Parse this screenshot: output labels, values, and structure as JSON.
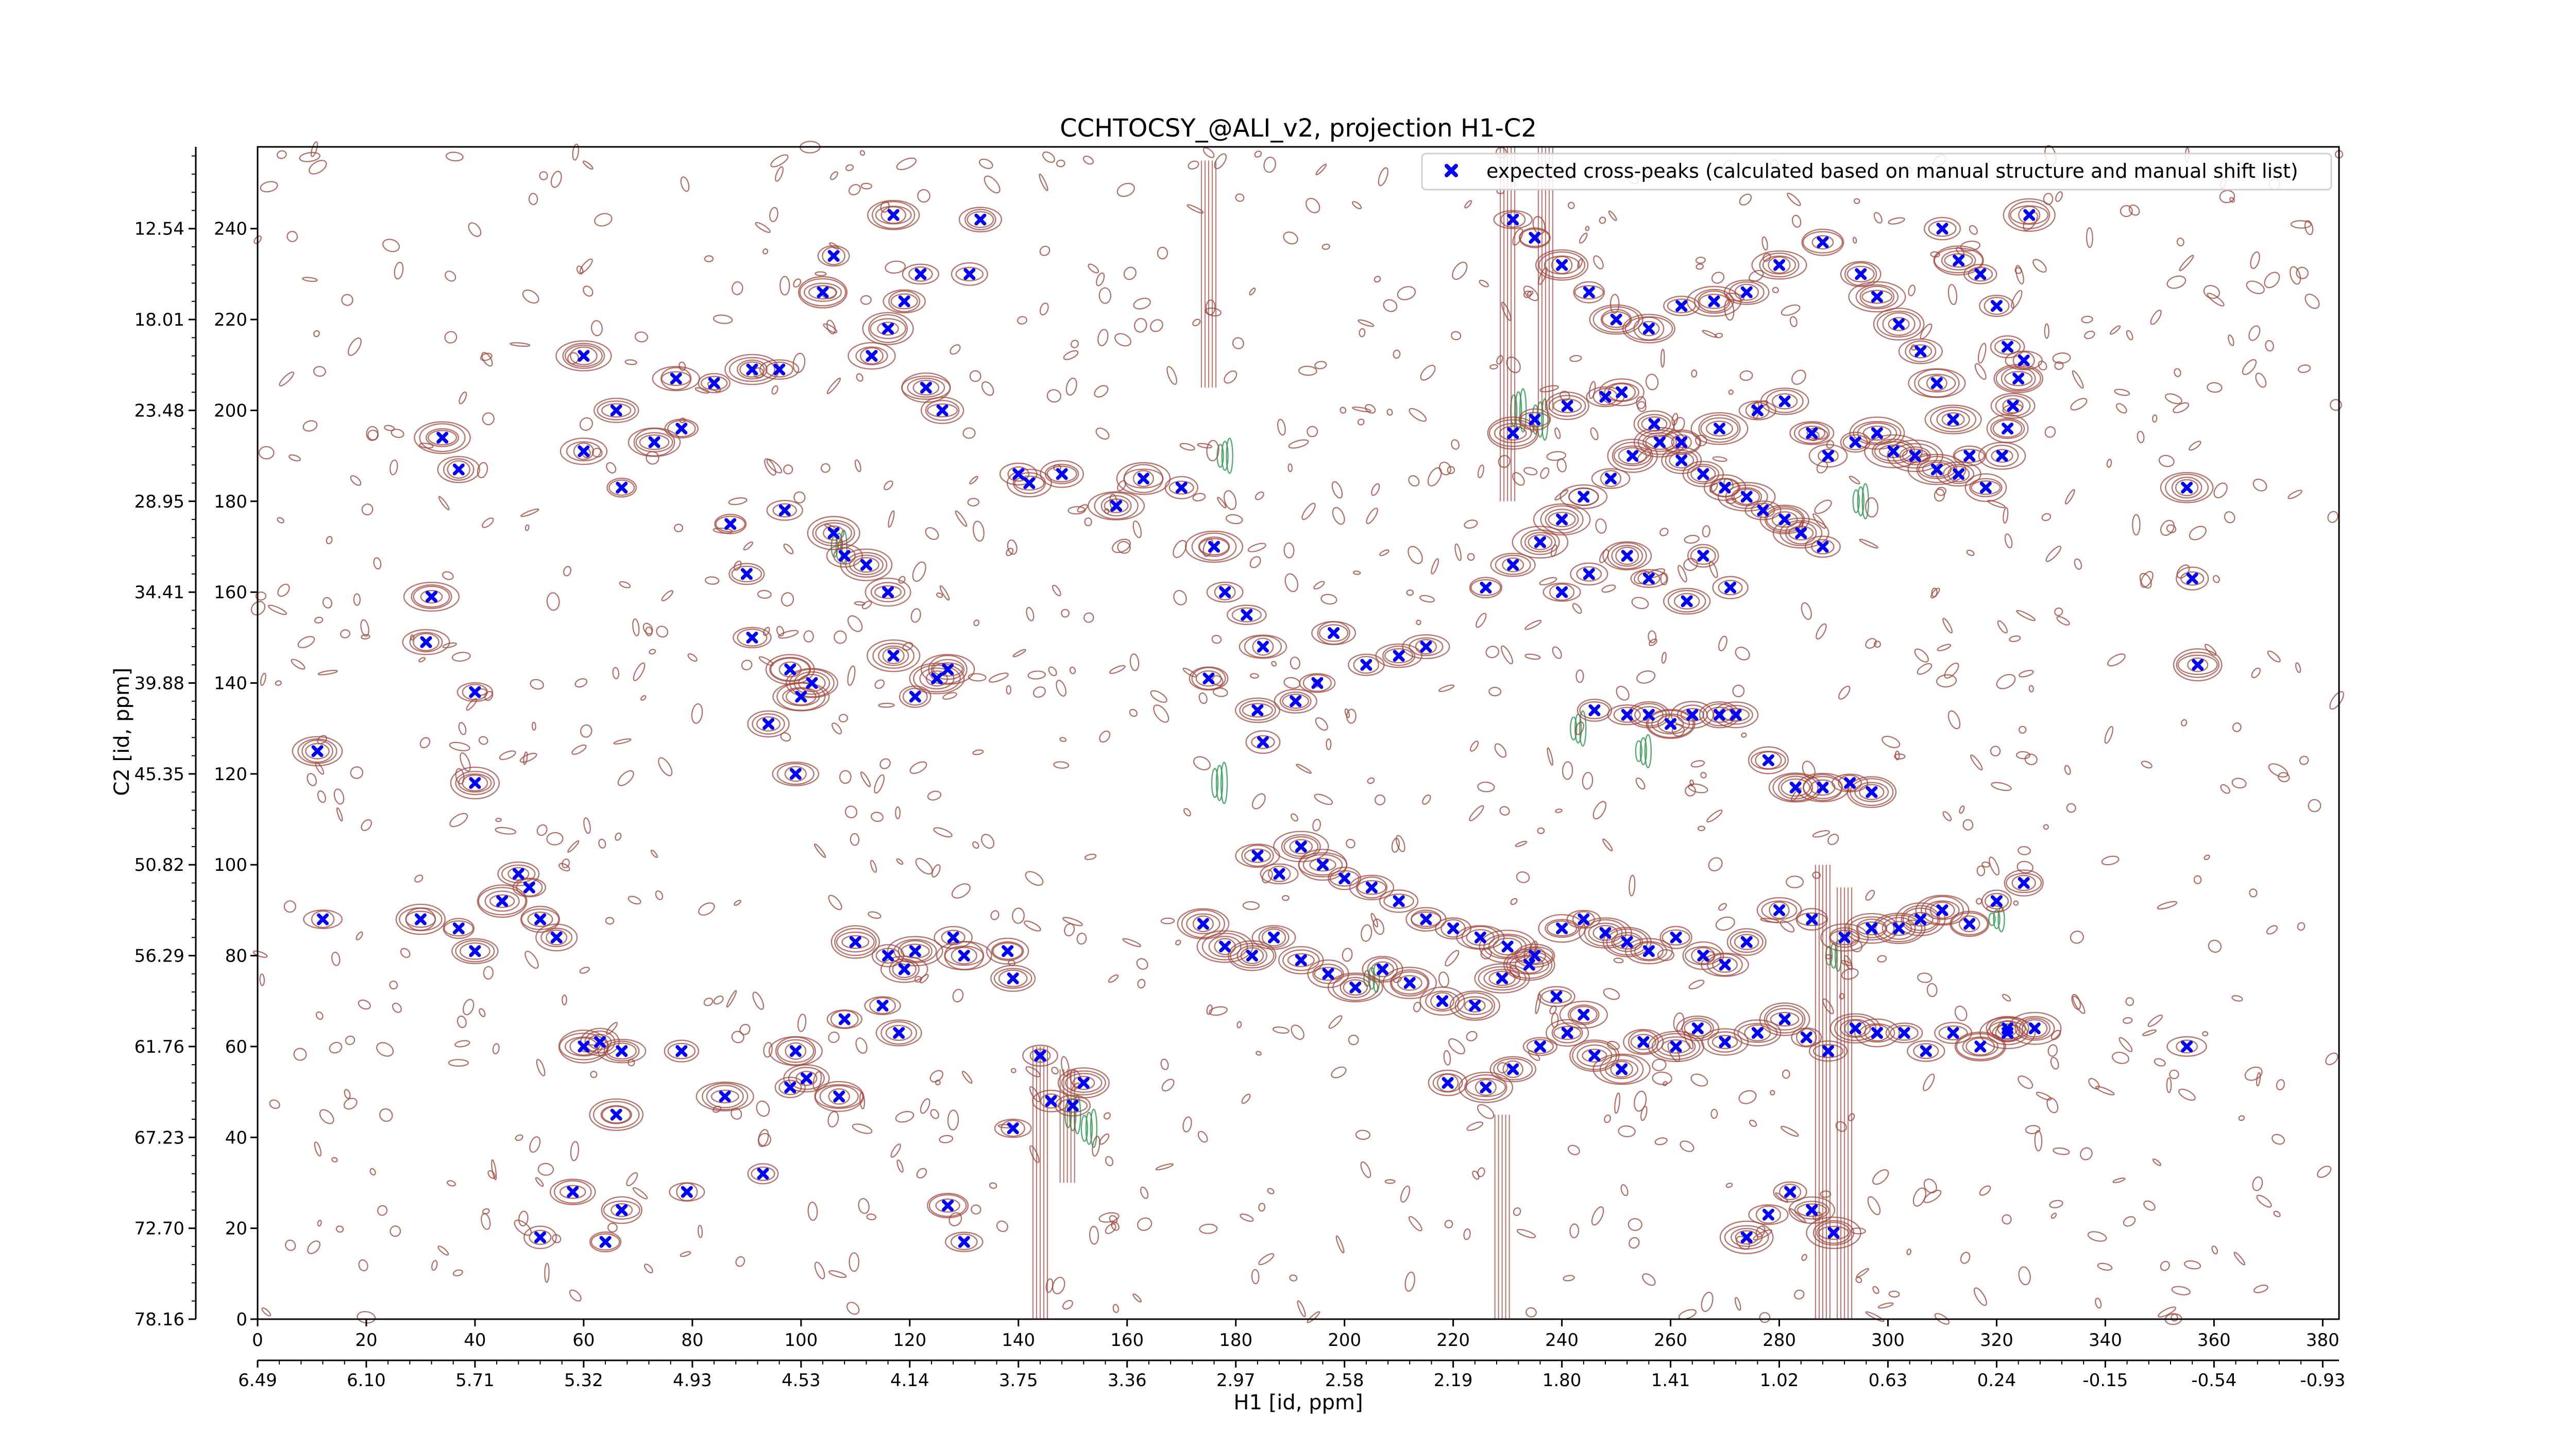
{
  "figure": {
    "title": "CCHTOCSY_@ALI_v2, projection H1-C2"
  },
  "colors": {
    "positive_contours": "#a0463c",
    "negative_contours": "#3a9a5a",
    "expected_peaks": "#0000ff",
    "axes": "#000000",
    "background": "#ffffff"
  },
  "chart_data": {
    "type": "scatter",
    "title": "CCHTOCSY_@ALI_v2, projection H1-C2",
    "xlabel": "H1 [id, ppm]",
    "ylabel": "C2 [id, ppm]",
    "x_index_range": [
      0,
      383
    ],
    "y_index_range": [
      0,
      258
    ],
    "x_index_ticks": [
      "0",
      "20",
      "40",
      "60",
      "80",
      "100",
      "120",
      "140",
      "160",
      "180",
      "200",
      "220",
      "240",
      "260",
      "280",
      "300",
      "320",
      "340",
      "360",
      "380"
    ],
    "x_ppm_ticks": [
      "6.49",
      "6.10",
      "5.71",
      "5.32",
      "4.93",
      "4.53",
      "4.14",
      "3.75",
      "3.36",
      "2.97",
      "2.58",
      "2.19",
      "1.80",
      "1.41",
      "1.02",
      "0.63",
      "0.24",
      "-0.15",
      "-0.54",
      "-0.93"
    ],
    "y_index_ticks": [
      "0",
      "20",
      "40",
      "60",
      "80",
      "100",
      "120",
      "140",
      "160",
      "180",
      "200",
      "220",
      "240"
    ],
    "y_ppm_ticks": [
      "78.16",
      "72.70",
      "67.23",
      "61.76",
      "56.29",
      "50.82",
      "45.35",
      "39.88",
      "34.41",
      "28.95",
      "23.48",
      "18.01",
      "12.54"
    ],
    "grid": false,
    "legend": {
      "position": "top-right",
      "entries": [
        "expected cross-peaks (calculated based on manual structure and manual shift list)"
      ]
    },
    "series": [
      {
        "name": "expected cross-peaks (calculated based on manual structure and manual shift list)",
        "marker": "x",
        "color": "#0000ff",
        "points": [
          [
            11,
            125
          ],
          [
            34,
            194
          ],
          [
            37,
            187
          ],
          [
            32,
            159
          ],
          [
            31,
            149
          ],
          [
            40,
            138
          ],
          [
            40,
            118
          ],
          [
            12,
            88
          ],
          [
            30,
            88
          ],
          [
            37,
            86
          ],
          [
            40,
            81
          ],
          [
            45,
            92
          ],
          [
            48,
            98
          ],
          [
            50,
            95
          ],
          [
            52,
            88
          ],
          [
            55,
            84
          ],
          [
            60,
            60
          ],
          [
            63,
            61
          ],
          [
            66,
            45
          ],
          [
            67,
            59
          ],
          [
            58,
            28
          ],
          [
            52,
            18
          ],
          [
            64,
            17
          ],
          [
            67,
            24
          ],
          [
            78,
            59
          ],
          [
            79,
            28
          ],
          [
            93,
            32
          ],
          [
            86,
            49
          ],
          [
            98,
            51
          ],
          [
            99,
            59
          ],
          [
            101,
            53
          ],
          [
            107,
            49
          ],
          [
            108,
            66
          ],
          [
            115,
            69
          ],
          [
            118,
            63
          ],
          [
            110,
            83
          ],
          [
            116,
            80
          ],
          [
            119,
            77
          ],
          [
            121,
            81
          ],
          [
            128,
            84
          ],
          [
            130,
            80
          ],
          [
            138,
            81
          ],
          [
            139,
            75
          ],
          [
            144,
            58
          ],
          [
            146,
            48
          ],
          [
            150,
            47
          ],
          [
            152,
            52
          ],
          [
            139,
            42
          ],
          [
            127,
            25
          ],
          [
            130,
            17
          ],
          [
            60,
            212
          ],
          [
            66,
            200
          ],
          [
            60,
            191
          ],
          [
            67,
            183
          ],
          [
            73,
            193
          ],
          [
            78,
            196
          ],
          [
            77,
            207
          ],
          [
            84,
            206
          ],
          [
            87,
            175
          ],
          [
            90,
            164
          ],
          [
            91,
            150
          ],
          [
            98,
            143
          ],
          [
            94,
            131
          ],
          [
            99,
            120
          ],
          [
            100,
            137
          ],
          [
            102,
            140
          ],
          [
            97,
            178
          ],
          [
            106,
            173
          ],
          [
            108,
            168
          ],
          [
            112,
            166
          ],
          [
            116,
            160
          ],
          [
            117,
            146
          ],
          [
            121,
            137
          ],
          [
            125,
            141
          ],
          [
            127,
            143
          ],
          [
            113,
            212
          ],
          [
            116,
            218
          ],
          [
            119,
            224
          ],
          [
            122,
            230
          ],
          [
            123,
            205
          ],
          [
            126,
            200
          ],
          [
            131,
            230
          ],
          [
            133,
            242
          ],
          [
            117,
            243
          ],
          [
            106,
            234
          ],
          [
            104,
            226
          ],
          [
            96,
            209
          ],
          [
            91,
            209
          ],
          [
            140,
            186
          ],
          [
            142,
            184
          ],
          [
            148,
            186
          ],
          [
            158,
            179
          ],
          [
            163,
            185
          ],
          [
            170,
            183
          ],
          [
            176,
            170
          ],
          [
            178,
            160
          ],
          [
            182,
            155
          ],
          [
            185,
            148
          ],
          [
            175,
            141
          ],
          [
            184,
            134
          ],
          [
            185,
            127
          ],
          [
            191,
            136
          ],
          [
            195,
            140
          ],
          [
            198,
            151
          ],
          [
            204,
            144
          ],
          [
            210,
            146
          ],
          [
            215,
            148
          ],
          [
            226,
            161
          ],
          [
            231,
            166
          ],
          [
            236,
            171
          ],
          [
            240,
            176
          ],
          [
            244,
            181
          ],
          [
            249,
            185
          ],
          [
            253,
            190
          ],
          [
            258,
            193
          ],
          [
            262,
            189
          ],
          [
            266,
            186
          ],
          [
            270,
            183
          ],
          [
            274,
            181
          ],
          [
            277,
            178
          ],
          [
            281,
            176
          ],
          [
            284,
            173
          ],
          [
            288,
            170
          ],
          [
            240,
            160
          ],
          [
            245,
            164
          ],
          [
            252,
            168
          ],
          [
            256,
            163
          ],
          [
            263,
            158
          ],
          [
            266,
            168
          ],
          [
            271,
            161
          ],
          [
            246,
            134
          ],
          [
            252,
            133
          ],
          [
            256,
            133
          ],
          [
            260,
            131
          ],
          [
            264,
            133
          ],
          [
            269,
            133
          ],
          [
            272,
            133
          ],
          [
            278,
            123
          ],
          [
            283,
            117
          ],
          [
            288,
            117
          ],
          [
            293,
            118
          ],
          [
            297,
            116
          ],
          [
            231,
            195
          ],
          [
            235,
            198
          ],
          [
            241,
            201
          ],
          [
            248,
            203
          ],
          [
            251,
            204
          ],
          [
            257,
            197
          ],
          [
            262,
            193
          ],
          [
            269,
            196
          ],
          [
            276,
            200
          ],
          [
            281,
            202
          ],
          [
            286,
            195
          ],
          [
            289,
            190
          ],
          [
            294,
            193
          ],
          [
            298,
            195
          ],
          [
            301,
            191
          ],
          [
            305,
            190
          ],
          [
            309,
            187
          ],
          [
            313,
            186
          ],
          [
            318,
            183
          ],
          [
            321,
            190
          ],
          [
            322,
            196
          ],
          [
            323,
            201
          ],
          [
            324,
            207
          ],
          [
            325,
            211
          ],
          [
            322,
            214
          ],
          [
            315,
            190
          ],
          [
            312,
            198
          ],
          [
            309,
            206
          ],
          [
            306,
            213
          ],
          [
            302,
            219
          ],
          [
            298,
            225
          ],
          [
            295,
            230
          ],
          [
            288,
            237
          ],
          [
            280,
            232
          ],
          [
            274,
            226
          ],
          [
            268,
            224
          ],
          [
            262,
            223
          ],
          [
            256,
            218
          ],
          [
            250,
            220
          ],
          [
            245,
            226
          ],
          [
            240,
            232
          ],
          [
            235,
            238
          ],
          [
            231,
            242
          ],
          [
            310,
            240
          ],
          [
            313,
            233
          ],
          [
            317,
            230
          ],
          [
            320,
            223
          ],
          [
            326,
            243
          ],
          [
            356,
            163
          ],
          [
            357,
            144
          ],
          [
            355,
            60
          ],
          [
            355,
            183
          ],
          [
            184,
            102
          ],
          [
            188,
            98
          ],
          [
            192,
            104
          ],
          [
            196,
            100
          ],
          [
            200,
            97
          ],
          [
            205,
            95
          ],
          [
            210,
            92
          ],
          [
            215,
            88
          ],
          [
            220,
            86
          ],
          [
            225,
            84
          ],
          [
            230,
            82
          ],
          [
            235,
            80
          ],
          [
            240,
            86
          ],
          [
            244,
            88
          ],
          [
            248,
            85
          ],
          [
            252,
            83
          ],
          [
            256,
            81
          ],
          [
            261,
            84
          ],
          [
            266,
            80
          ],
          [
            270,
            78
          ],
          [
            274,
            83
          ],
          [
            280,
            90
          ],
          [
            286,
            88
          ],
          [
            292,
            84
          ],
          [
            297,
            86
          ],
          [
            302,
            86
          ],
          [
            306,
            88
          ],
          [
            310,
            90
          ],
          [
            315,
            87
          ],
          [
            320,
            92
          ],
          [
            325,
            96
          ],
          [
            174,
            87
          ],
          [
            178,
            82
          ],
          [
            183,
            80
          ],
          [
            187,
            84
          ],
          [
            192,
            79
          ],
          [
            197,
            76
          ],
          [
            202,
            73
          ],
          [
            207,
            77
          ],
          [
            212,
            74
          ],
          [
            218,
            70
          ],
          [
            224,
            69
          ],
          [
            229,
            75
          ],
          [
            234,
            78
          ],
          [
            239,
            71
          ],
          [
            244,
            67
          ],
          [
            219,
            52
          ],
          [
            226,
            51
          ],
          [
            231,
            55
          ],
          [
            236,
            60
          ],
          [
            241,
            63
          ],
          [
            246,
            58
          ],
          [
            251,
            55
          ],
          [
            255,
            61
          ],
          [
            261,
            60
          ],
          [
            265,
            64
          ],
          [
            270,
            61
          ],
          [
            276,
            63
          ],
          [
            281,
            66
          ],
          [
            285,
            62
          ],
          [
            289,
            59
          ],
          [
            294,
            64
          ],
          [
            298,
            63
          ],
          [
            303,
            63
          ],
          [
            307,
            59
          ],
          [
            312,
            63
          ],
          [
            317,
            60
          ],
          [
            322,
            63
          ],
          [
            322,
            64
          ],
          [
            327,
            64
          ],
          [
            290,
            19
          ],
          [
            286,
            24
          ],
          [
            282,
            28
          ],
          [
            278,
            23
          ],
          [
            274,
            18
          ]
        ]
      }
    ]
  }
}
